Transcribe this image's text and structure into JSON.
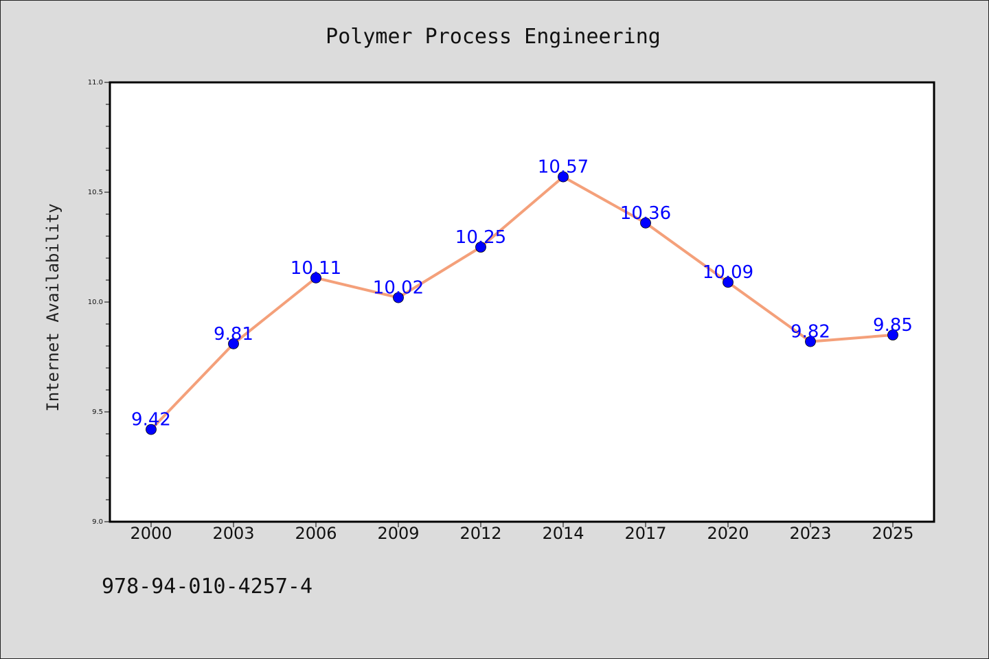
{
  "chart_data": {
    "type": "line",
    "title": "Polymer Process Engineering",
    "xlabel": "",
    "ylabel": "Internet Availability",
    "categories": [
      "2000",
      "2003",
      "2006",
      "2009",
      "2012",
      "2014",
      "2017",
      "2020",
      "2023",
      "2025"
    ],
    "series": [
      {
        "values": [
          9.42,
          9.81,
          10.11,
          10.02,
          10.25,
          10.57,
          10.36,
          10.09,
          9.82,
          9.85
        ]
      }
    ],
    "data_labels": [
      "9.42",
      "9.81",
      "10.11",
      "10.02",
      "10.25",
      "10.57",
      "10.36",
      "10.09",
      "9.82",
      "9.85"
    ],
    "ylim": [
      9.0,
      11.0
    ],
    "yticks": [
      "9.0",
      "9.5",
      "10.0",
      "10.5",
      "11.0"
    ],
    "grid": false,
    "line_color": "#f4a07a",
    "marker_color": "#0000ff",
    "label_color": "#0000ff",
    "background": "#dcdcdc",
    "plot_background": "#ffffff"
  },
  "footer_text": "978-94-010-4257-4"
}
